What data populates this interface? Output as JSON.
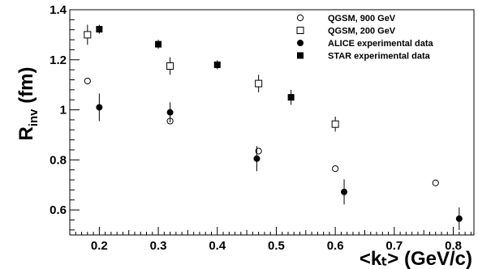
{
  "chart_data": {
    "type": "scatter",
    "xlabel": "<kₜ> (GeV/c)",
    "ylabel_main": "R",
    "ylabel_sub": "inv",
    "ylabel_unit": " (fm)",
    "xlim": [
      0.15,
      0.835
    ],
    "ylim": [
      0.5,
      1.4
    ],
    "x_ticks": [
      0.2,
      0.3,
      0.4,
      0.5,
      0.6,
      0.7,
      0.8
    ],
    "x_tick_labels": [
      "0.2",
      "0.3",
      "0.4",
      "0.5",
      "0.6",
      "0.7",
      "0.8"
    ],
    "y_ticks": [
      0.6,
      0.8,
      1.0,
      1.2,
      1.4
    ],
    "y_tick_labels": [
      "0.6",
      "0.8",
      "1",
      "1.2",
      "1.4"
    ],
    "legend_position": "top-right",
    "grid": false,
    "series": [
      {
        "name": "QGSM, 900 GeV",
        "marker": "open-circle",
        "points": [
          {
            "x": 0.18,
            "y": 1.115,
            "err": 0.0
          },
          {
            "x": 0.32,
            "y": 0.955,
            "err": 0.0
          },
          {
            "x": 0.47,
            "y": 0.835,
            "err": 0.012
          },
          {
            "x": 0.6,
            "y": 0.765,
            "err": 0.0
          },
          {
            "x": 0.77,
            "y": 0.708,
            "err": 0.012
          }
        ]
      },
      {
        "name": "QGSM, 200 GeV",
        "marker": "open-square",
        "points": [
          {
            "x": 0.18,
            "y": 1.3,
            "err": 0.04
          },
          {
            "x": 0.32,
            "y": 1.175,
            "err": 0.035
          },
          {
            "x": 0.47,
            "y": 1.105,
            "err": 0.035
          },
          {
            "x": 0.6,
            "y": 0.943,
            "err": 0.03
          }
        ]
      },
      {
        "name": "ALICE experimental data",
        "marker": "filled-circle",
        "points": [
          {
            "x": 0.2,
            "y": 1.01,
            "err": 0.055
          },
          {
            "x": 0.32,
            "y": 0.99,
            "err": 0.04
          },
          {
            "x": 0.467,
            "y": 0.805,
            "err": 0.05
          },
          {
            "x": 0.615,
            "y": 0.672,
            "err": 0.05
          },
          {
            "x": 0.81,
            "y": 0.565,
            "err": 0.045
          }
        ]
      },
      {
        "name": "STAR experimental data",
        "marker": "filled-square",
        "points": [
          {
            "x": 0.2,
            "y": 1.322,
            "err": 0.018
          },
          {
            "x": 0.3,
            "y": 1.262,
            "err": 0.018
          },
          {
            "x": 0.4,
            "y": 1.18,
            "err": 0.018
          },
          {
            "x": 0.525,
            "y": 1.05,
            "err": 0.03
          }
        ]
      }
    ]
  }
}
